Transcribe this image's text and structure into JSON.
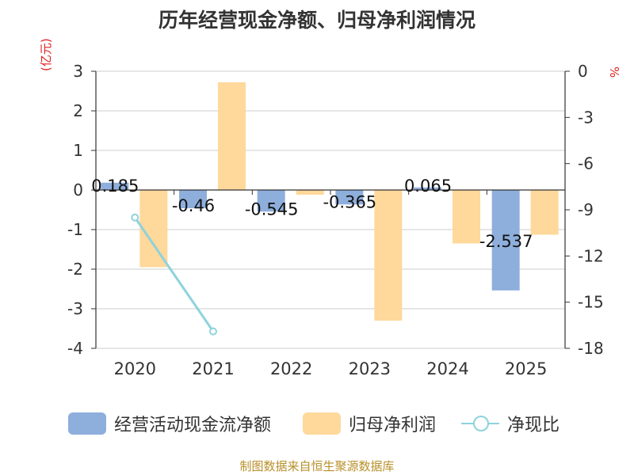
{
  "title": "历年经营现金净额、归母净利润情况",
  "y_unit_left": "(亿元)",
  "y_unit_right": "%",
  "legend": {
    "cash_flow": "经营活动现金流净额",
    "net_profit": "归母净利润",
    "ratio": "净现比"
  },
  "source": "制图数据来自恒生聚源数据库",
  "colors": {
    "cash_flow": "#8eaedc",
    "net_profit": "#ffd89b",
    "ratio": "#8dd3dc",
    "axis": "#333333",
    "grid": "#cccccc"
  },
  "chart_data": {
    "type": "bar",
    "categories": [
      "2020",
      "2021",
      "2022",
      "2023",
      "2024",
      "2025"
    ],
    "series": [
      {
        "name": "经营活动现金流净额",
        "type": "bar",
        "axis": "left",
        "values": [
          0.185,
          -0.46,
          -0.545,
          -0.365,
          0.065,
          -2.537
        ],
        "labels": [
          "0.185",
          "-0.46",
          "-0.545",
          "-0.365",
          "0.065",
          "-2.537"
        ]
      },
      {
        "name": "归母净利润",
        "type": "bar",
        "axis": "left",
        "values": [
          -1.95,
          2.72,
          -0.12,
          -3.3,
          -1.35,
          -1.13
        ]
      },
      {
        "name": "净现比",
        "type": "line",
        "axis": "right",
        "values": [
          -9.5,
          -16.9,
          null,
          null,
          null,
          null
        ]
      }
    ],
    "y_left": {
      "ylim": [
        -4,
        3
      ],
      "ticks": [
        3,
        2,
        1,
        0,
        -1,
        -2,
        -3,
        -4
      ]
    },
    "y_right": {
      "ylim": [
        -18,
        0
      ],
      "ticks": [
        0,
        -3,
        -6,
        -9,
        -12,
        -15,
        -18
      ]
    },
    "grid": true,
    "legend_position": "bottom"
  }
}
